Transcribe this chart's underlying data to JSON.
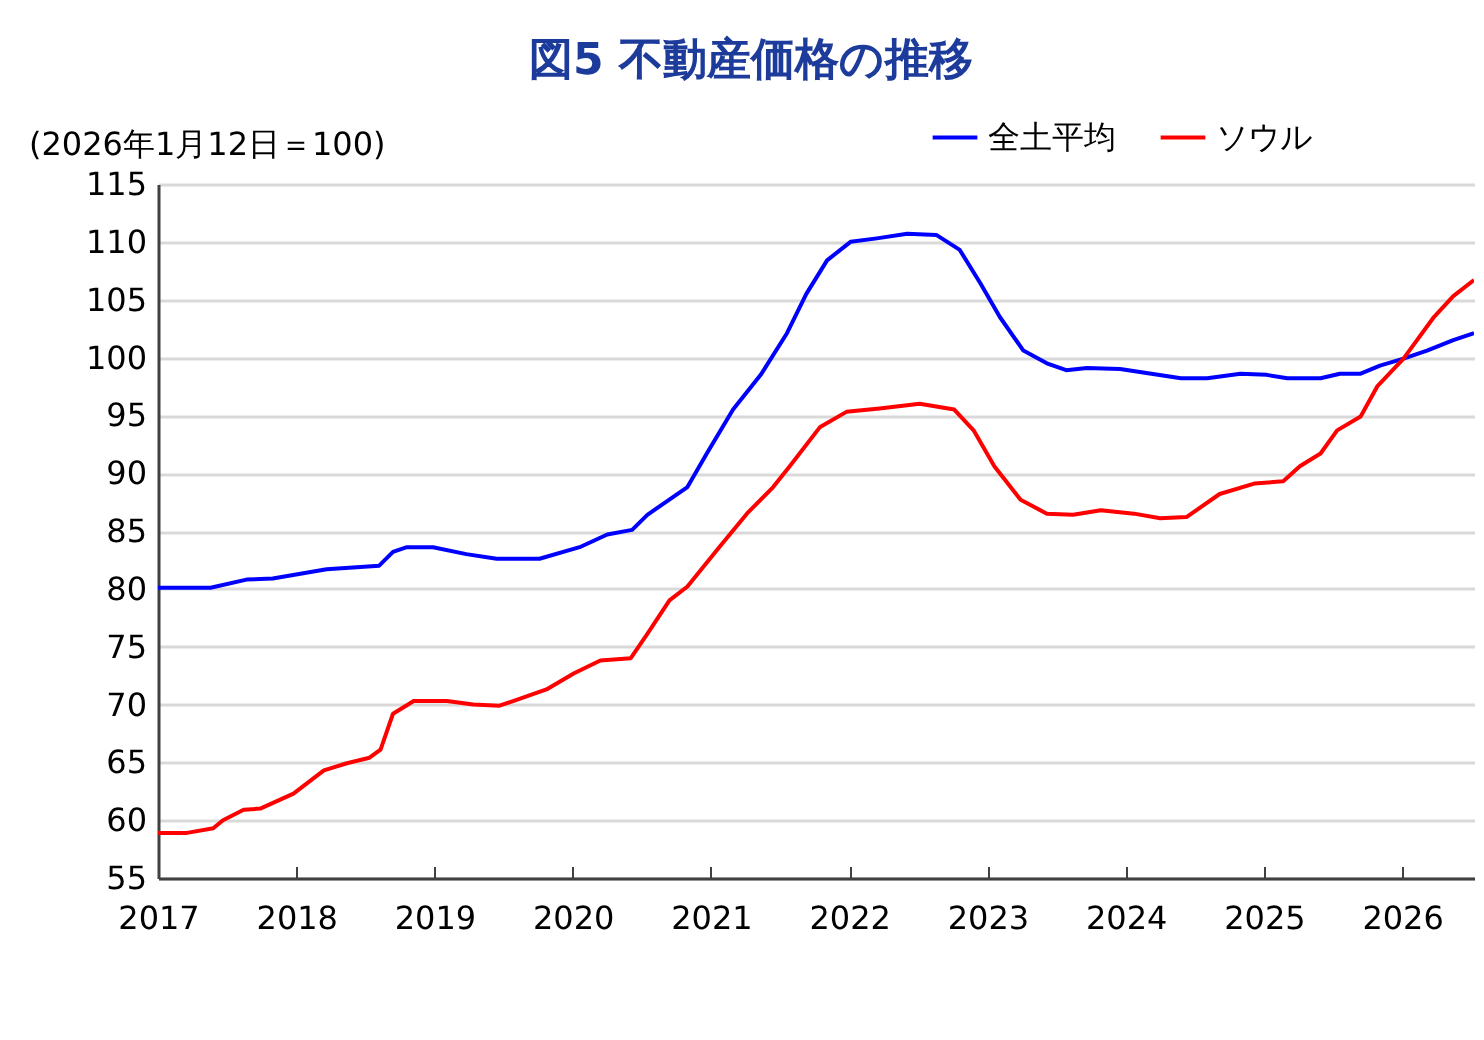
{
  "chart_data": {
    "type": "line",
    "title": "図5 不動産価格の推移",
    "ylabel": "(2026年1月12日＝100)",
    "xlim": [
      2017,
      2026.52
    ],
    "xticks": [
      2017,
      2018,
      2019,
      2020,
      2021,
      2022,
      2023,
      2024,
      2025,
      2026
    ],
    "ylim": [
      55,
      115
    ],
    "yticks": [
      55,
      60,
      65,
      70,
      75,
      80,
      85,
      90,
      95,
      100,
      105,
      110,
      115
    ],
    "grid": "y",
    "legend": "top right",
    "line_style": "solid",
    "marker": "none",
    "series": [
      {
        "name": "全土平均",
        "color": "#0000ff",
        "x": [
          2017.0,
          2017.38,
          2017.64,
          2017.83,
          2018.22,
          2018.6,
          2018.7,
          2018.8,
          2018.99,
          2019.23,
          2019.45,
          2019.76,
          2020.05,
          2020.25,
          2020.43,
          2020.54,
          2020.83,
          2020.97,
          2021.16,
          2021.36,
          2021.55,
          2021.69,
          2021.84,
          2022.01,
          2022.2,
          2022.42,
          2022.63,
          2022.8,
          2022.95,
          2023.09,
          2023.26,
          2023.43,
          2023.57,
          2023.72,
          2023.96,
          2024.4,
          2024.59,
          2024.83,
          2025.02,
          2025.17,
          2025.41,
          2025.55,
          2025.7,
          2025.84,
          2026.01,
          2026.18,
          2026.37,
          2026.52
        ],
        "values": [
          80.1,
          80.1,
          80.8,
          80.9,
          81.7,
          82.0,
          83.2,
          83.6,
          83.6,
          83.0,
          82.6,
          82.6,
          83.6,
          84.7,
          85.1,
          86.4,
          88.8,
          91.7,
          95.5,
          98.5,
          102.1,
          105.5,
          108.4,
          110.0,
          110.3,
          110.7,
          110.6,
          109.3,
          106.4,
          103.5,
          100.6,
          99.5,
          98.9,
          99.1,
          99.0,
          98.2,
          98.2,
          98.6,
          98.5,
          98.2,
          98.2,
          98.6,
          98.6,
          99.3,
          99.9,
          100.6,
          101.5,
          102.1
        ]
      },
      {
        "name": "ソウル",
        "color": "#ff0000",
        "x": [
          2017.0,
          2017.21,
          2017.4,
          2017.47,
          2017.62,
          2017.74,
          2017.98,
          2018.2,
          2018.36,
          2018.53,
          2018.61,
          2018.7,
          2018.85,
          2019.09,
          2019.28,
          2019.47,
          2019.62,
          2019.81,
          2020.01,
          2020.2,
          2020.42,
          2020.54,
          2020.7,
          2020.83,
          2021.06,
          2021.26,
          2021.45,
          2021.57,
          2021.79,
          2021.98,
          2022.22,
          2022.51,
          2022.76,
          2022.9,
          2023.05,
          2023.24,
          2023.43,
          2023.62,
          2023.82,
          2024.06,
          2024.25,
          2024.44,
          2024.68,
          2024.93,
          2025.14,
          2025.26,
          2025.41,
          2025.53,
          2025.7,
          2025.82,
          2026.01,
          2026.23,
          2026.37,
          2026.52
        ],
        "values": [
          58.9,
          58.9,
          59.3,
          60.0,
          60.9,
          61.0,
          62.3,
          64.3,
          64.9,
          65.4,
          66.1,
          69.2,
          70.3,
          70.3,
          70.0,
          69.9,
          70.5,
          71.3,
          72.7,
          73.8,
          74.0,
          76.1,
          79.0,
          80.2,
          83.6,
          86.5,
          88.8,
          90.6,
          94.0,
          95.3,
          95.6,
          96.0,
          95.5,
          93.7,
          90.6,
          87.7,
          86.5,
          86.4,
          86.8,
          86.5,
          86.1,
          86.2,
          88.2,
          89.1,
          89.3,
          90.6,
          91.7,
          93.7,
          94.9,
          97.5,
          99.9,
          103.5,
          105.3,
          106.7
        ]
      }
    ]
  }
}
